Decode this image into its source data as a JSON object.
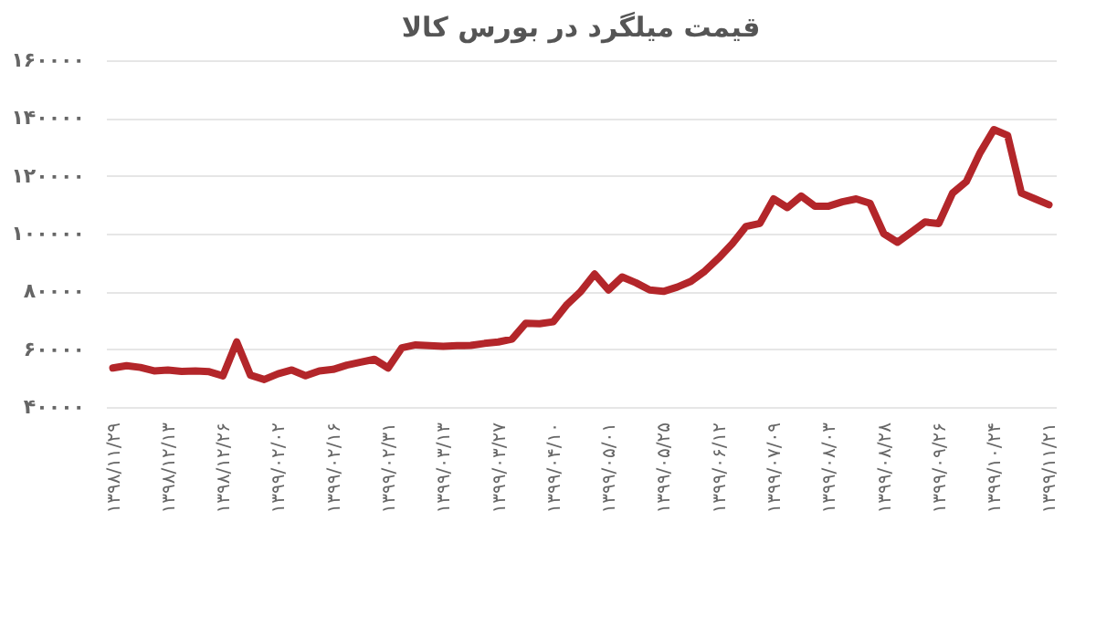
{
  "chart_data": {
    "type": "line",
    "title": "قیمت میلگرد در بورس کالا",
    "categories": [
      "۱۳۹۸/۱۱/۲۹",
      null,
      null,
      null,
      "۱۳۹۸/۱۲/۱۳",
      null,
      null,
      null,
      "۱۳۹۸/۱۲/۲۶",
      null,
      null,
      null,
      "۱۳۹۹/۰۲/۰۲",
      null,
      null,
      null,
      "۱۳۹۹/۰۲/۱۶",
      null,
      null,
      null,
      "۱۳۹۹/۰۲/۳۱",
      null,
      null,
      null,
      "۱۳۹۹/۰۳/۱۳",
      null,
      null,
      null,
      "۱۳۹۹/۰۳/۲۷",
      null,
      null,
      null,
      "۱۳۹۹/۰۴/۱۰",
      null,
      null,
      null,
      "۱۳۹۹/۰۵/۰۱",
      null,
      null,
      null,
      "۱۳۹۹/۰۵/۲۵",
      null,
      null,
      null,
      "۱۳۹۹/۰۶/۱۲",
      null,
      null,
      null,
      "۱۳۹۹/۰۷/۰۹",
      null,
      null,
      null,
      "۱۳۹۹/۰۸/۰۳",
      null,
      null,
      null,
      "۱۳۹۹/۰۸/۲۸",
      null,
      null,
      null,
      "۱۳۹۹/۰۹/۲۶",
      null,
      null,
      null,
      "۱۳۹۹/۱۰/۲۴",
      null,
      null,
      null,
      "۱۳۹۹/۱۱/۲۱"
    ],
    "series": [
      {
        "color": "#b3262a",
        "values": [
          53500,
          54300,
          53700,
          52500,
          52800,
          52300,
          52500,
          52200,
          50800,
          62500,
          51000,
          49500,
          51500,
          52800,
          50800,
          52500,
          53000,
          54500,
          55500,
          56500,
          53500,
          60500,
          61500,
          61200,
          61000,
          61200,
          61300,
          62000,
          62500,
          63500,
          69000,
          68800,
          69500,
          75500,
          80000,
          86000,
          80500,
          85000,
          83000,
          80500,
          80000,
          81500,
          83500,
          87000,
          91500,
          96500,
          102500,
          103500,
          112000,
          109000,
          113000,
          109500,
          109500,
          111000,
          112000,
          110500,
          100000,
          97000,
          100500,
          104000,
          103500,
          114000,
          118000,
          128000,
          136000,
          134000,
          114000,
          112000,
          110000
        ]
      }
    ],
    "ylim": [
      40000,
      160000
    ],
    "yticks": [
      {
        "value": 40000,
        "label": "۴۰۰۰۰"
      },
      {
        "value": 60000,
        "label": "۶۰۰۰۰"
      },
      {
        "value": 80000,
        "label": "۸۰۰۰۰"
      },
      {
        "value": 100000,
        "label": "۱۰۰۰۰۰"
      },
      {
        "value": 120000,
        "label": "۱۲۰۰۰۰"
      },
      {
        "value": 140000,
        "label": "۱۴۰۰۰۰"
      },
      {
        "value": 160000,
        "label": "۱۶۰۰۰۰"
      }
    ],
    "grid": "y",
    "marker": "none",
    "line_style": "solid"
  }
}
